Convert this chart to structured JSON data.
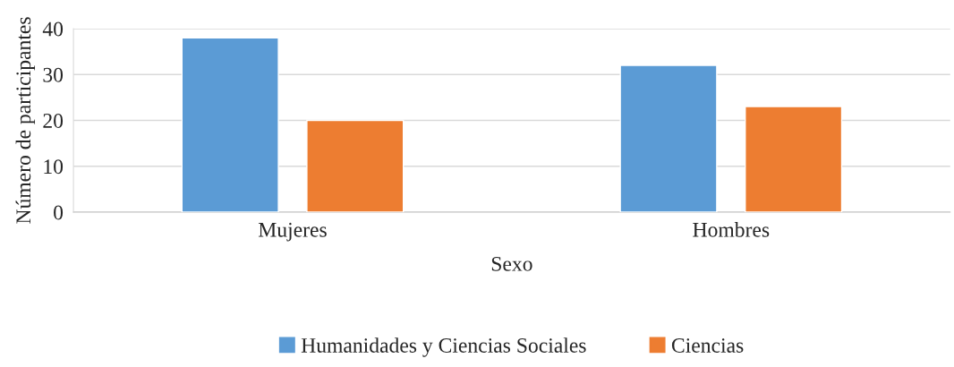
{
  "chart_data": {
    "type": "bar",
    "xlabel": "Sexo",
    "ylabel": "Número de participantes",
    "categories": [
      "Mujeres",
      "Hombres"
    ],
    "series": [
      {
        "name": "Humanidades y Ciencias Sociales",
        "color": "#5b9bd5",
        "values": [
          38,
          32
        ]
      },
      {
        "name": "Ciencias",
        "color": "#ed7d31",
        "values": [
          20,
          23
        ]
      }
    ],
    "ylim": [
      0,
      40
    ],
    "yticks": [
      0,
      10,
      20,
      30,
      40
    ],
    "grid": "y",
    "legend": "bottom"
  }
}
